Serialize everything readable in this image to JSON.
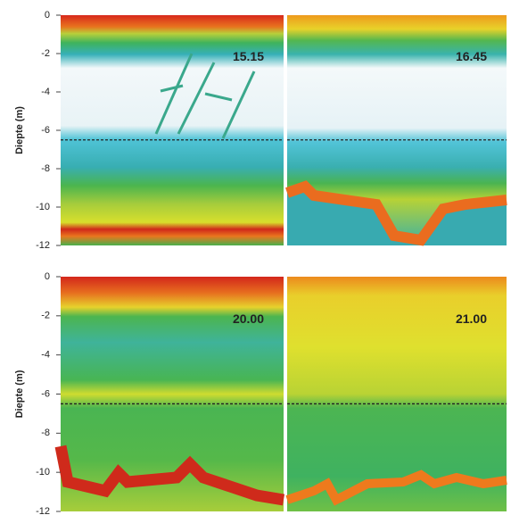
{
  "chart_data": [
    {
      "type": "echogram",
      "title": "15.15",
      "ylabel": "Diepte (m)",
      "ylim": [
        -12,
        0
      ],
      "yticks": [
        0,
        -2,
        -4,
        -6,
        -8,
        -10,
        -12
      ],
      "reference_depth": -6.5
    },
    {
      "type": "echogram",
      "title": "16.45",
      "ylim": [
        -12,
        0
      ],
      "reference_depth": -6.5
    },
    {
      "type": "echogram",
      "title": "20.00",
      "ylabel": "Diepte (m)",
      "ylim": [
        -12,
        0
      ],
      "yticks": [
        0,
        -2,
        -4,
        -6,
        -8,
        -10,
        -12
      ],
      "reference_depth": -6.5
    },
    {
      "type": "echogram",
      "title": "21.00",
      "ylim": [
        -12,
        0
      ],
      "reference_depth": -6.5
    }
  ]
}
